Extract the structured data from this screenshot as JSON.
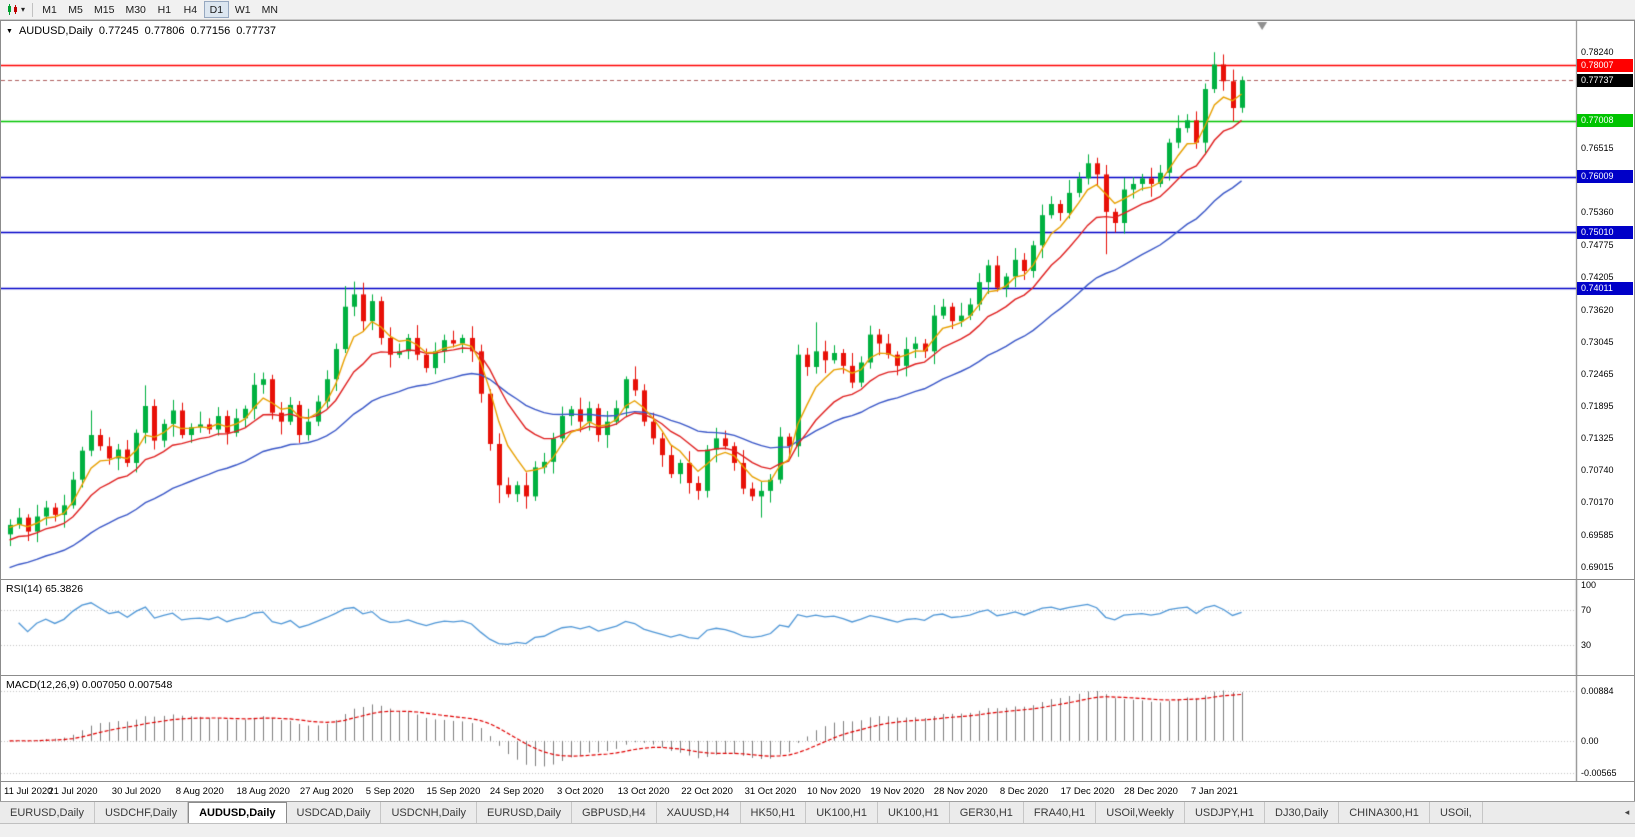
{
  "toolbar": {
    "timeframes": [
      {
        "label": "M1"
      },
      {
        "label": "M5"
      },
      {
        "label": "M15"
      },
      {
        "label": "M30"
      },
      {
        "label": "H1"
      },
      {
        "label": "H4"
      },
      {
        "label": "D1",
        "active": true
      },
      {
        "label": "W1"
      },
      {
        "label": "MN"
      }
    ]
  },
  "header": {
    "collapse_icon": "▼",
    "symbol": "AUDUSD,Daily",
    "open": "0.77245",
    "high": "0.77806",
    "low": "0.77156",
    "close": "0.77737"
  },
  "chart_data": {
    "type": "candlestick",
    "title": "AUDUSD,Daily",
    "price_scale": {
      "top": 0.788,
      "bottom": 0.688
    },
    "right_margin_fraction": 0.788,
    "axis_ticks": [
      "0.78240",
      "0.76515",
      "0.75360",
      "0.74775",
      "0.74205",
      "0.73620",
      "0.73045",
      "0.72465",
      "0.71895",
      "0.71325",
      "0.70740",
      "0.70170",
      "0.69585",
      "0.69015"
    ],
    "hlines": [
      {
        "price": 0.78007,
        "label": "0.78007",
        "color_key": "hline_red"
      },
      {
        "price": 0.77008,
        "label": "0.77008",
        "color_key": "hline_green"
      },
      {
        "price": 0.76009,
        "label": "0.76009",
        "color_key": "hline_blue"
      },
      {
        "price": 0.7501,
        "label": "0.75010",
        "color_key": "hline_blue"
      },
      {
        "price": 0.74011,
        "label": "0.74011",
        "color_key": "hline_blue"
      }
    ],
    "current_price": {
      "value": 0.77737,
      "label": "0.77737"
    },
    "x_labels": [
      "11 Jul 2020",
      "21 Jul 2020",
      "30 Jul 2020",
      "8 Aug 2020",
      "18 Aug 2020",
      "27 Aug 2020",
      "5 Sep 2020",
      "15 Sep 2020",
      "24 Sep 2020",
      "3 Oct 2020",
      "13 Oct 2020",
      "22 Oct 2020",
      "31 Oct 2020",
      "10 Nov 2020",
      "19 Nov 2020",
      "28 Nov 2020",
      "8 Dec 2020",
      "17 Dec 2020",
      "28 Dec 2020",
      "7 Jan 2021"
    ],
    "label_every": 7,
    "candles": {
      "first_open": 0.696,
      "closes": [
        0.6977,
        0.699,
        0.6965,
        0.6992,
        0.7008,
        0.6995,
        0.7012,
        0.7058,
        0.711,
        0.7138,
        0.7118,
        0.7096,
        0.7112,
        0.7088,
        0.7142,
        0.719,
        0.7128,
        0.7158,
        0.7182,
        0.7138,
        0.7152,
        0.7157,
        0.7148,
        0.7172,
        0.7142,
        0.7168,
        0.7185,
        0.7228,
        0.7238,
        0.7178,
        0.7162,
        0.7192,
        0.7138,
        0.7162,
        0.7198,
        0.7238,
        0.7292,
        0.7368,
        0.739,
        0.7342,
        0.7378,
        0.7312,
        0.7282,
        0.7288,
        0.7312,
        0.7282,
        0.7258,
        0.7288,
        0.7308,
        0.7302,
        0.7312,
        0.7288,
        0.7212,
        0.7122,
        0.7048,
        0.7032,
        0.7048,
        0.7028,
        0.708,
        0.709,
        0.7132,
        0.7172,
        0.7184,
        0.7162,
        0.7186,
        0.7138,
        0.7162,
        0.7186,
        0.7238,
        0.7218,
        0.7162,
        0.7132,
        0.7102,
        0.7068,
        0.7088,
        0.7052,
        0.7038,
        0.7112,
        0.7132,
        0.7118,
        0.7088,
        0.7042,
        0.7028,
        0.7038,
        0.7058,
        0.7135,
        0.7118,
        0.7282,
        0.726,
        0.7288,
        0.7272,
        0.7285,
        0.7262,
        0.7232,
        0.7268,
        0.7318,
        0.7302,
        0.7282,
        0.7262,
        0.7292,
        0.7302,
        0.7288,
        0.7352,
        0.7368,
        0.7342,
        0.7352,
        0.7372,
        0.7412,
        0.7442,
        0.7402,
        0.7422,
        0.7452,
        0.7432,
        0.7478,
        0.7532,
        0.7552,
        0.7536,
        0.7572,
        0.7598,
        0.7625,
        0.7605,
        0.7538,
        0.7518,
        0.7578,
        0.7588,
        0.7598,
        0.7588,
        0.7608,
        0.7662,
        0.7688,
        0.7702,
        0.7662,
        0.7758,
        0.7802,
        0.7772,
        0.7724,
        0.77737
      ],
      "last_bar": {
        "open": 0.77245,
        "high": 0.77806,
        "low": 0.77156,
        "close": 0.77737
      },
      "wick_cycle": [
        0.001,
        0.0017,
        0.0006,
        0.0021,
        0.0012,
        0.0008,
        0.0019,
        0.0014,
        0.0007,
        0.0023,
        0.0011,
        0.0016
      ],
      "overrides": {
        "9": {
          "high": 0.7182
        },
        "15": {
          "high": 0.7227
        },
        "37": {
          "high": 0.7405
        },
        "38": {
          "high": 0.7413
        },
        "54": {
          "low": 0.7016
        },
        "57": {
          "low": 0.7006
        },
        "68": {
          "high": 0.7243
        },
        "83": {
          "low": 0.699
        },
        "87": {
          "high": 0.73
        },
        "89": {
          "high": 0.734
        },
        "121": {
          "low": 0.7462
        },
        "133": {
          "high": 0.7824
        },
        "134": {
          "high": 0.782
        },
        "135": {
          "low": 0.77
        }
      }
    },
    "moving_averages": [
      {
        "name": "slow",
        "period": 30,
        "seed": 0.6895,
        "color_key": "ma_slow"
      },
      {
        "name": "mid",
        "period": 12,
        "seed": 0.6945,
        "color_key": "ma_mid"
      },
      {
        "name": "fast",
        "period": 5,
        "seed": 0.697,
        "color_key": "ma_fast"
      }
    ]
  },
  "rsi": {
    "label": "RSI(14) 65.3826",
    "period": 14,
    "value": 65.3826,
    "axis": [
      "100",
      "70",
      "30"
    ],
    "axis_values": [
      100,
      70,
      30
    ],
    "dotted_levels": [
      70,
      30
    ]
  },
  "macd": {
    "label": "MACD(12,26,9) 0.007050 0.007548",
    "fast": 12,
    "slow": 26,
    "signal_period": 9,
    "macd_value": "0.007050",
    "signal_value": "0.007548",
    "axis": [
      "0.00884",
      "0.00",
      "-0.00565"
    ],
    "axis_values": [
      0.00884,
      0,
      -0.00565
    ],
    "scale": {
      "top": 0.011,
      "bottom": -0.0066
    }
  },
  "tab_bar": {
    "scroll_icon": "◂",
    "tabs": [
      {
        "label": "EURUSD,Daily"
      },
      {
        "label": "USDCHF,Daily"
      },
      {
        "label": "AUDUSD,Daily",
        "active": true
      },
      {
        "label": "USDCAD,Daily"
      },
      {
        "label": "USDCNH,Daily"
      },
      {
        "label": "EURUSD,Daily"
      },
      {
        "label": "GBPUSD,H4"
      },
      {
        "label": "XAUUSD,H4"
      },
      {
        "label": "HK50,H1"
      },
      {
        "label": "UK100,H1"
      },
      {
        "label": "UK100,H1"
      },
      {
        "label": "GER30,H1"
      },
      {
        "label": "FRA40,H1"
      },
      {
        "label": "USOil,Weekly"
      },
      {
        "label": "USDJPY,H1"
      },
      {
        "label": "DJ30,Daily"
      },
      {
        "label": "CHINA300,H1"
      },
      {
        "label": "USOil,"
      }
    ]
  },
  "colors": {
    "up": "#00B140",
    "down": "#E81008",
    "hline_red": "#FF0000",
    "hline_green": "#00C400",
    "hline_blue": "#0000C8",
    "current_price_line": "#B06060",
    "current_price_tag": "#000000",
    "ma_fast": "#E8A000",
    "ma_mid": "#E02020",
    "ma_slow": "#3A57C8",
    "rsi": "#4F97D7",
    "macd_hist": "#7F7F7F",
    "macd_signal": "#E00000",
    "grid_dots": "#C4C4C4",
    "frame": "#808080",
    "shift_marker": "#909090"
  }
}
